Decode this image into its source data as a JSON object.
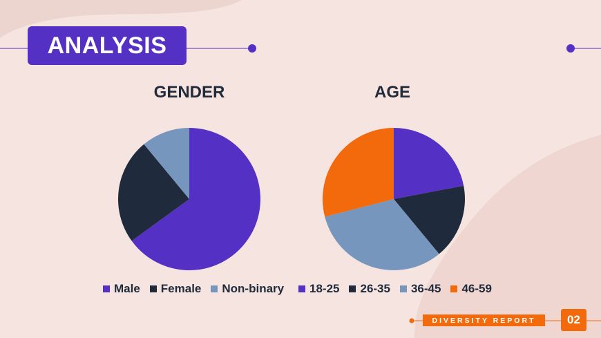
{
  "header": {
    "title": "ANALYSIS"
  },
  "colors": {
    "purple": "#5530c4",
    "navy": "#1f2a3d",
    "steel_blue": "#7796bd",
    "orange": "#f26a0c",
    "background": "#f5e4df"
  },
  "chart_data": [
    {
      "type": "pie",
      "title": "GENDER",
      "categories": [
        "Male",
        "Female",
        "Non-binary"
      ],
      "values": [
        65,
        24,
        11
      ],
      "colors": [
        "#5530c4",
        "#1f2a3d",
        "#7796bd"
      ]
    },
    {
      "type": "pie",
      "title": "AGE",
      "categories": [
        "18-25",
        "26-35",
        "36-45",
        "46-59"
      ],
      "values": [
        22,
        17,
        32,
        29
      ],
      "colors": [
        "#5530c4",
        "#1f2a3d",
        "#7796bd",
        "#f26a0c"
      ]
    }
  ],
  "footer": {
    "label": "DIVERSITY REPORT",
    "page_number": "02"
  }
}
